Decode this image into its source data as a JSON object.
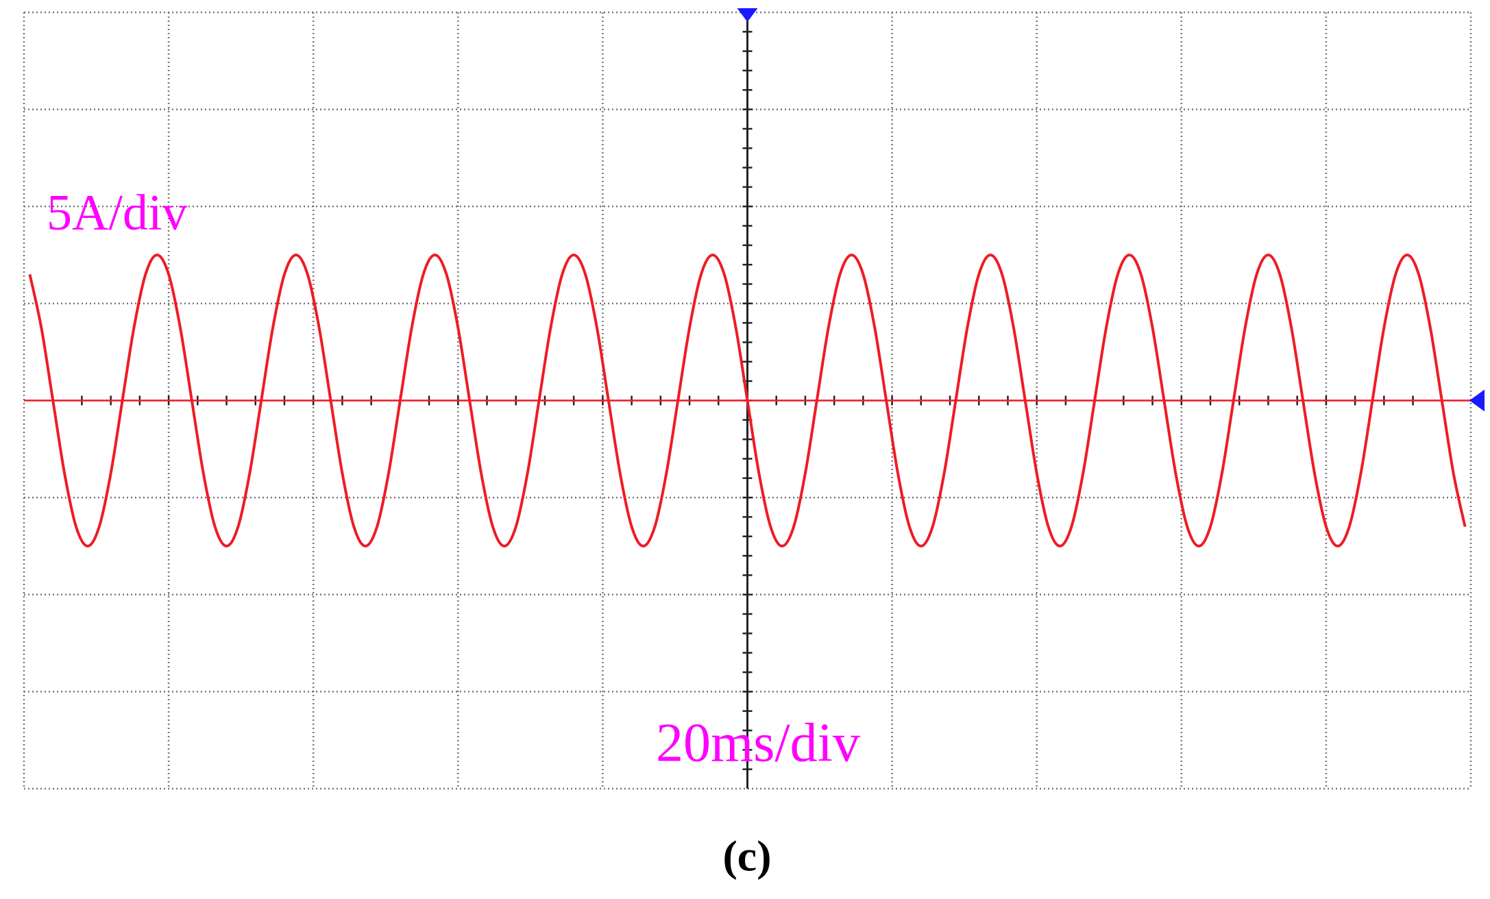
{
  "chart_data": {
    "type": "line",
    "annotations": [
      "5A/div",
      "20ms/div"
    ],
    "caption": "(c)",
    "x": [
      -99.2,
      -97.6,
      -96,
      -94.4,
      -92.8,
      -91.2,
      -89.6,
      -88,
      -86.4,
      -84.8,
      -83.2,
      -81.6,
      -80,
      -78.4,
      -76.8,
      -75.2,
      -73.6,
      -72,
      -70.4,
      -68.8,
      -67.2,
      -65.6,
      -64,
      -62.4,
      -60.8,
      -59.2,
      -57.6,
      -56,
      -54.4,
      -52.8,
      -51.2,
      -49.6,
      -48,
      -46.4,
      -44.8,
      -43.2,
      -41.6,
      -40,
      -38.4,
      -36.8,
      -35.2,
      -33.6,
      -32,
      -30.4,
      -28.8,
      -27.2,
      -25.6,
      -24,
      -22.4,
      -20.8,
      -19.2,
      -17.6,
      -16,
      -14.4,
      -12.8,
      -11.2,
      -9.6,
      -8,
      -6.4,
      -4.8,
      -3.2,
      -1.6,
      0,
      1.6,
      3.2,
      4.8,
      6.4,
      8,
      9.6,
      11.2,
      12.8,
      14.4,
      16,
      17.6,
      19.2,
      20.8,
      22.4,
      24,
      25.6,
      27.2,
      28.8,
      30.4,
      32,
      33.6,
      35.2,
      36.8,
      38.4,
      40,
      41.6,
      43.2,
      44.8,
      46.4,
      48,
      49.6,
      51.2,
      52.8,
      54.4,
      56,
      57.6,
      59.2,
      60.8,
      62.4,
      64,
      65.6,
      67.2,
      68.8,
      70.4,
      72,
      73.6,
      75.2,
      76.8,
      78.4,
      80,
      81.6,
      83.2,
      84.8,
      86.4,
      88,
      89.6,
      91.2,
      92.8,
      94.4,
      96,
      97.6,
      99.2
    ],
    "series": [
      {
        "color": "#ee1c25",
        "values": [
          6.5,
          3.75,
          0,
          -3.75,
          -6.5,
          -7.5,
          -6.5,
          -3.75,
          0,
          3.75,
          6.5,
          7.5,
          6.5,
          3.75,
          0,
          -3.75,
          -6.5,
          -7.5,
          -6.5,
          -3.75,
          0,
          3.75,
          6.5,
          7.5,
          6.5,
          3.75,
          0,
          -3.75,
          -6.5,
          -7.5,
          -6.5,
          -3.75,
          0,
          3.75,
          6.5,
          7.5,
          6.5,
          3.75,
          0,
          -3.75,
          -6.5,
          -7.5,
          -6.5,
          -3.75,
          0,
          3.75,
          6.5,
          7.5,
          6.5,
          3.75,
          0,
          -3.75,
          -6.5,
          -7.5,
          -6.5,
          -3.75,
          0,
          3.75,
          6.5,
          7.5,
          6.5,
          3.75,
          0,
          -3.75,
          -6.5,
          -7.5,
          -6.5,
          -3.75,
          0,
          3.75,
          6.5,
          7.5,
          6.5,
          3.75,
          0,
          -3.75,
          -6.5,
          -7.5,
          -6.5,
          -3.75,
          0,
          3.75,
          6.5,
          7.5,
          6.5,
          3.75,
          0,
          -3.75,
          -6.5,
          -7.5,
          -6.5,
          -3.75,
          0,
          3.75,
          6.5,
          7.5,
          6.5,
          3.75,
          0,
          -3.75,
          -6.5,
          -7.5,
          -6.5,
          -3.75,
          0,
          3.75,
          6.5,
          7.5,
          6.5,
          3.75,
          0,
          -3.75,
          -6.5,
          -7.5,
          -6.5,
          -3.75,
          0,
          3.75,
          6.5,
          7.5,
          6.5,
          3.75,
          0,
          -3.75,
          -6.5
        ]
      }
    ],
    "xlim": [
      -100,
      100
    ],
    "ylim": [
      -20,
      20
    ],
    "xticks": [
      -100,
      -80,
      -60,
      -40,
      -20,
      0,
      20,
      40,
      60,
      80,
      100
    ],
    "yticks": [
      -20,
      -15,
      -10,
      -5,
      0,
      5,
      10,
      15,
      20
    ],
    "grid": true,
    "annotation_color": "#ff00ff"
  }
}
